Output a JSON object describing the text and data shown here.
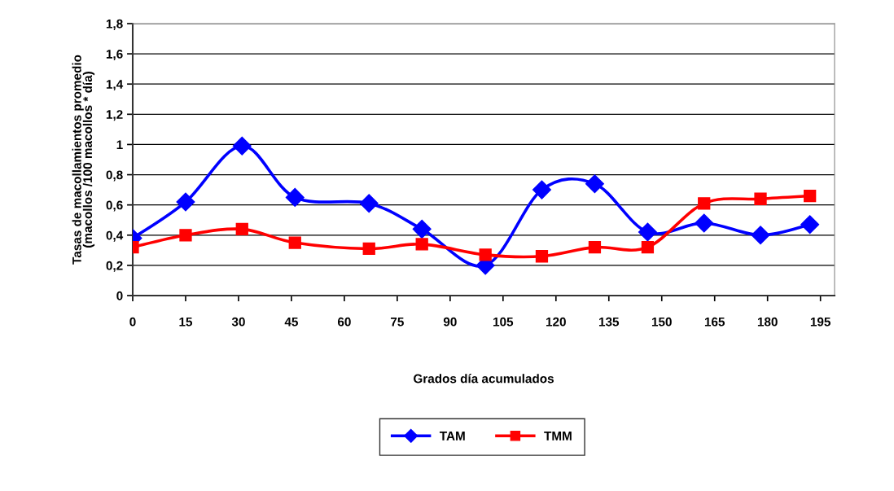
{
  "chart_data": {
    "type": "line",
    "xlabel": "Grados día acumulados",
    "ylabel": "Tasas de macollamientos promedio\n(macollos /100 macollos * día)",
    "x": [
      0,
      15,
      31,
      46,
      67,
      82,
      100,
      116,
      131,
      146,
      162,
      178,
      192
    ],
    "series": [
      {
        "name": "TAM",
        "color": "#0000ff",
        "marker": "diamond",
        "values": [
          0.38,
          0.62,
          0.99,
          0.65,
          0.61,
          0.44,
          0.2,
          0.7,
          0.74,
          0.42,
          0.48,
          0.4,
          0.47
        ]
      },
      {
        "name": "TMM",
        "color": "#ff0000",
        "marker": "square",
        "values": [
          0.32,
          0.4,
          0.44,
          0.35,
          0.31,
          0.34,
          0.27,
          0.26,
          0.32,
          0.32,
          0.61,
          0.64,
          0.66
        ]
      }
    ],
    "xlim": [
      0,
      199
    ],
    "xticks": [
      0,
      15,
      30,
      45,
      60,
      75,
      90,
      105,
      120,
      135,
      150,
      165,
      180,
      195
    ],
    "ylim": [
      0,
      1.8
    ],
    "yticks": [
      0,
      {
        "value": 0.2,
        "label": "0,2"
      },
      {
        "value": 0.4,
        "label": "0,4"
      },
      {
        "value": 0.6,
        "label": "0,6"
      },
      {
        "value": 0.8,
        "label": "0,8"
      },
      1,
      {
        "value": 1.2,
        "label": "1,2"
      },
      {
        "value": 1.4,
        "label": "1,4"
      },
      {
        "value": 1.6,
        "label": "1,6"
      },
      {
        "value": 1.8,
        "label": "1,8"
      }
    ],
    "grid": "y",
    "legend": "bottom",
    "line_style": "solid"
  }
}
